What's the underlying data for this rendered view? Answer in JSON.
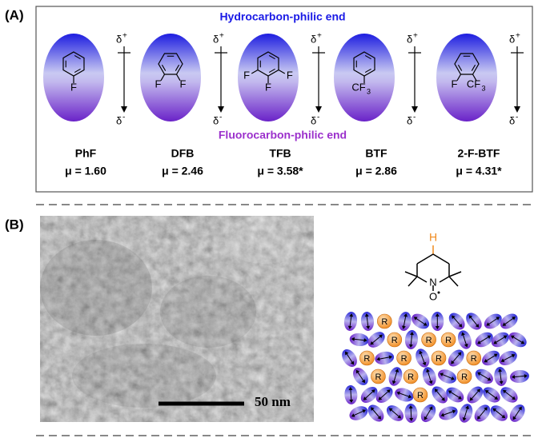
{
  "panel_a": {
    "label": "(A)",
    "top_label": "Hydrocarbon-philic end",
    "bottom_label": "Fluorocarbon-philic end",
    "delta": "δ",
    "plus": "+",
    "minus": "-",
    "molecules": [
      {
        "name": "PhF",
        "dipole": "μ = 1.60",
        "atoms": [
          {
            "text": "F"
          }
        ]
      },
      {
        "name": "DFB",
        "dipole": "μ = 2.46",
        "atoms": [
          {
            "text": "F"
          },
          {
            "text": "F"
          }
        ]
      },
      {
        "name": "TFB",
        "dipole": "μ = 3.58*",
        "atoms": [
          {
            "text": "F"
          },
          {
            "text": "F"
          },
          {
            "text": "F"
          }
        ]
      },
      {
        "name": "BTF",
        "dipole": "μ = 2.86",
        "atoms": [
          {
            "text": "CF",
            "sub": "3"
          }
        ]
      },
      {
        "name": "2-F-BTF",
        "dipole": "μ = 4.31*",
        "atoms": [
          {
            "text": "F"
          },
          {
            "text": "CF",
            "sub": "3"
          }
        ]
      }
    ]
  },
  "panel_b": {
    "label": "(B)",
    "scale_bar": "50 nm",
    "tempo": {
      "h": "H",
      "n": "N",
      "o": "O"
    },
    "particle_label": "R"
  }
}
